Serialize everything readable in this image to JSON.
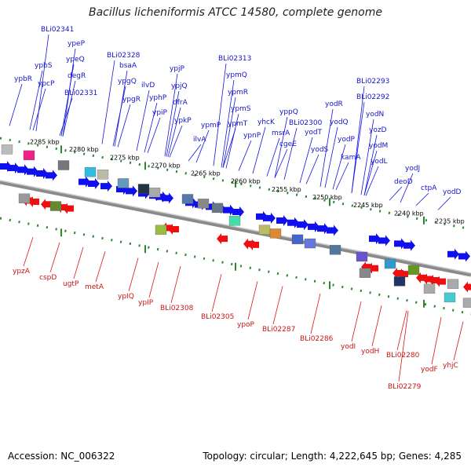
{
  "title": "Bacillus licheniformis ATCC 14580, complete genome",
  "accession": "Accession: NC_006322",
  "meta": "Topology: circular; Length: 4,222,645 bp; Genes: 4,285",
  "colors": {
    "forward": "#1010ee",
    "reverse": "#ee1010",
    "tick": "#2a8a2a",
    "backbone": "#777777"
  },
  "scale_labels": [
    "2285 kbp",
    "2280 kbp",
    "2275 kbp",
    "2270 kbp",
    "2265 kbp",
    "2260 kbp",
    "2255 kbp",
    "2250 kbp",
    "2245 kbp",
    "2240 kbp",
    "2235 kbp"
  ],
  "top_genes": [
    "ypbR",
    "ypbS",
    "ypcP",
    "ypeP",
    "ypeQ",
    "degR",
    "BLi02341",
    "BLi02331",
    "BLi02328",
    "bsaA",
    "ypgQ",
    "ypgR",
    "ilvD",
    "yphP",
    "ypiP",
    "ypjP",
    "ypjQ",
    "dfrA",
    "ypkP",
    "ilvA",
    "ypmP",
    "BLi02313",
    "ypmQ",
    "ypmR",
    "ypmS",
    "ypmT",
    "ypnP",
    "yhcK",
    "msrA",
    "cgeE",
    "yppQ",
    "BLi02300",
    "yodT",
    "yodS",
    "yodR",
    "yodQ",
    "yodP",
    "kamA",
    "BLi02293",
    "BLi02292",
    "yodN",
    "yozD",
    "yodM",
    "yodL",
    "yodJ",
    "deoD",
    "ctpA",
    "yodD"
  ],
  "bottom_genes": [
    "ypzA",
    "cspD",
    "ugtP",
    "metA",
    "ypIQ",
    "ypIP",
    "BLi02308",
    "BLi02305",
    "ypoP",
    "BLi02287",
    "BLi02286",
    "yodI",
    "yodH",
    "BLi02280",
    "BLi02279",
    "yodF",
    "yhjC"
  ]
}
